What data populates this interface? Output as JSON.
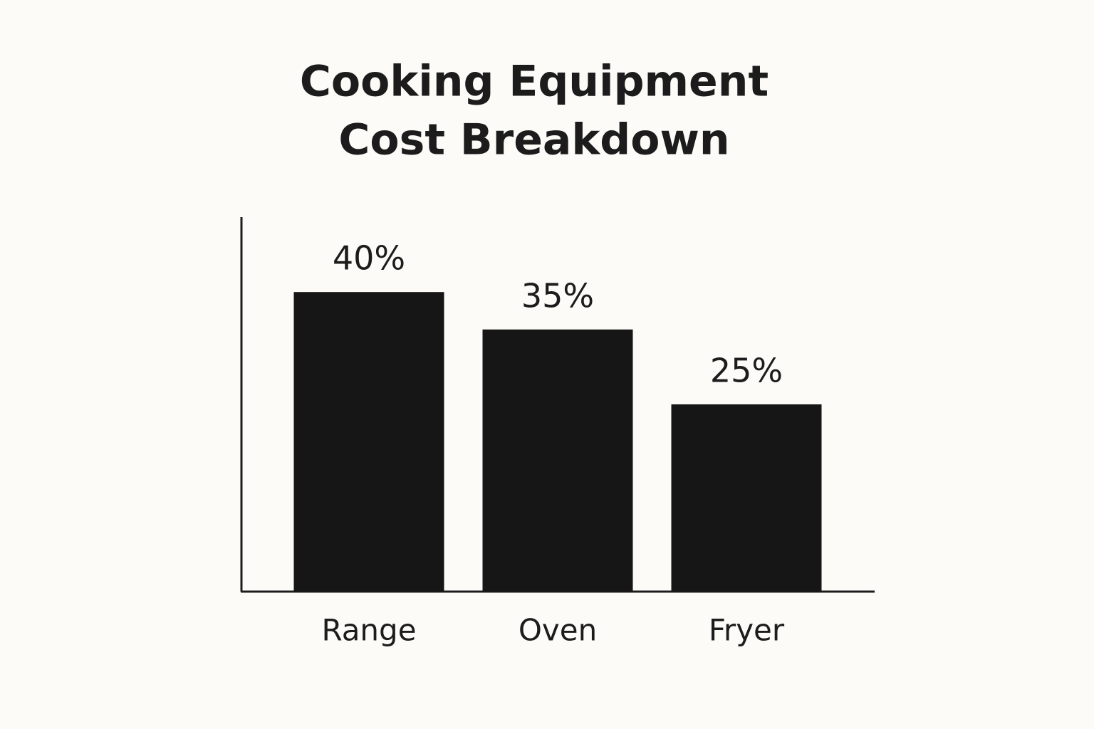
{
  "chart_data": {
    "type": "bar",
    "title": [
      "Cooking Equipment",
      "Cost Breakdown"
    ],
    "categories": [
      "Range",
      "Oven",
      "Fryer"
    ],
    "values": [
      40,
      35,
      25
    ],
    "value_labels": [
      "40%",
      "35%",
      "25%"
    ],
    "color": "#161616",
    "ylim": [
      0,
      50
    ]
  }
}
